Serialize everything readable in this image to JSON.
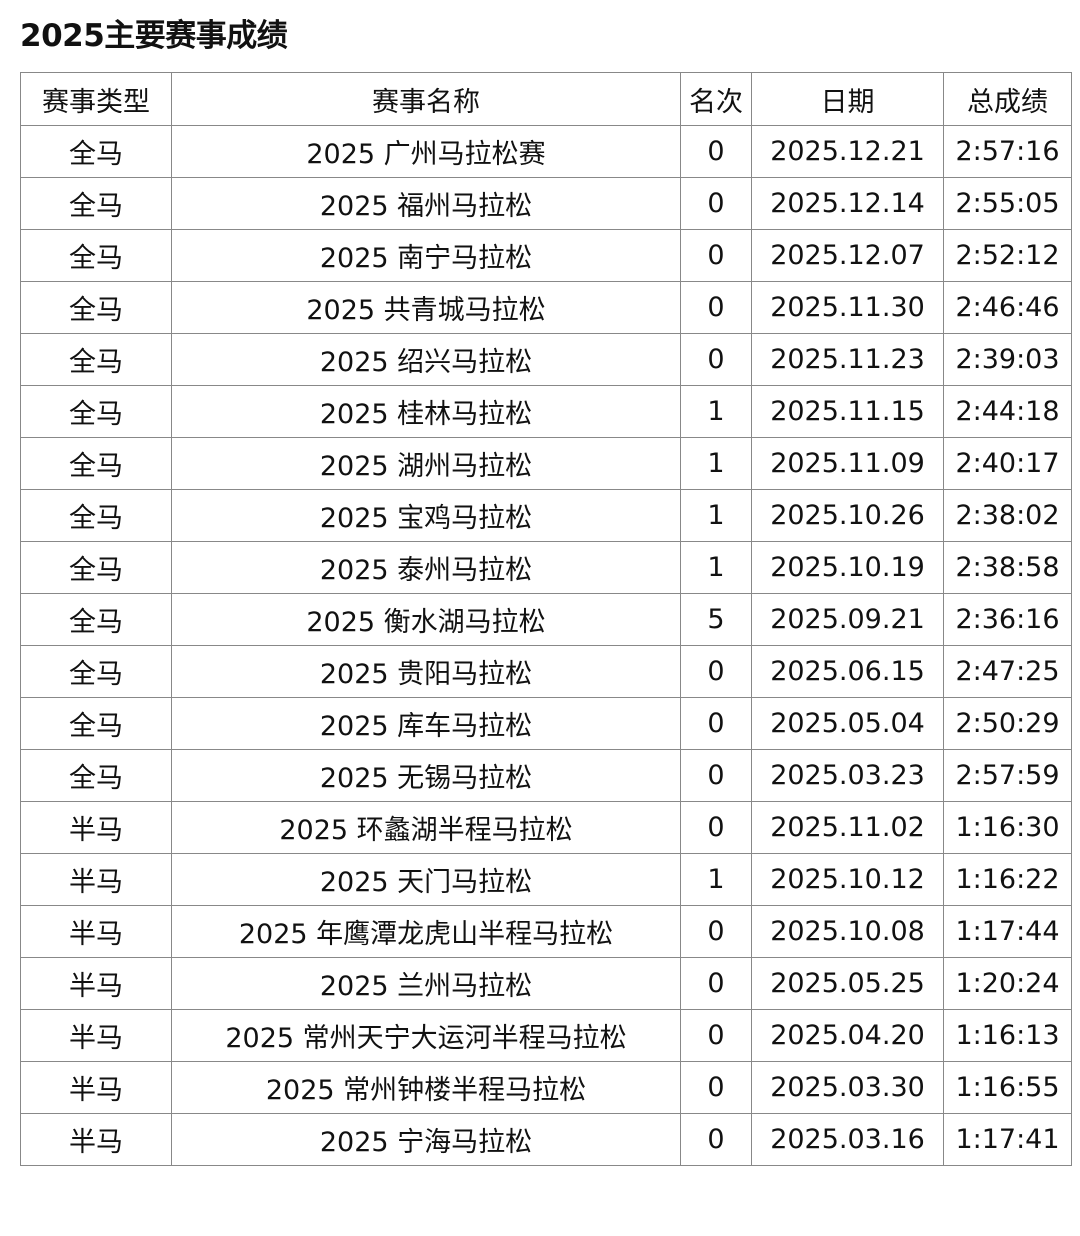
{
  "title": "2025主要赛事成绩",
  "columns": [
    "赛事类型",
    "赛事名称",
    "名次",
    "日期",
    "总成绩"
  ],
  "rows": [
    [
      "全马",
      "2025 广州马拉松赛",
      "0",
      "2025.12.21",
      "2:57:16"
    ],
    [
      "全马",
      "2025 福州马拉松",
      "0",
      "2025.12.14",
      "2:55:05"
    ],
    [
      "全马",
      "2025 南宁马拉松",
      "0",
      "2025.12.07",
      "2:52:12"
    ],
    [
      "全马",
      "2025 共青城马拉松",
      "0",
      "2025.11.30",
      "2:46:46"
    ],
    [
      "全马",
      "2025 绍兴马拉松",
      "0",
      "2025.11.23",
      "2:39:03"
    ],
    [
      "全马",
      "2025 桂林马拉松",
      "1",
      "2025.11.15",
      "2:44:18"
    ],
    [
      "全马",
      "2025 湖州马拉松",
      "1",
      "2025.11.09",
      "2:40:17"
    ],
    [
      "全马",
      "2025 宝鸡马拉松",
      "1",
      "2025.10.26",
      "2:38:02"
    ],
    [
      "全马",
      "2025 泰州马拉松",
      "1",
      "2025.10.19",
      "2:38:58"
    ],
    [
      "全马",
      "2025 衡水湖马拉松",
      "5",
      "2025.09.21",
      "2:36:16"
    ],
    [
      "全马",
      "2025 贵阳马拉松",
      "0",
      "2025.06.15",
      "2:47:25"
    ],
    [
      "全马",
      "2025 库车马拉松",
      "0",
      "2025.05.04",
      "2:50:29"
    ],
    [
      "全马",
      "2025 无锡马拉松",
      "0",
      "2025.03.23",
      "2:57:59"
    ],
    [
      "半马",
      "2025 环蠡湖半程马拉松",
      "0",
      "2025.11.02",
      "1:16:30"
    ],
    [
      "半马",
      "2025 天门马拉松",
      "1",
      "2025.10.12",
      "1:16:22"
    ],
    [
      "半马",
      "2025 年鹰潭龙虎山半程马拉松",
      "0",
      "2025.10.08",
      "1:17:44"
    ],
    [
      "半马",
      "2025 兰州马拉松",
      "0",
      "2025.05.25",
      "1:20:24"
    ],
    [
      "半马",
      "2025 常州天宁大运河半程马拉松",
      "0",
      "2025.04.20",
      "1:16:13"
    ],
    [
      "半马",
      "2025 常州钟楼半程马拉松",
      "0",
      "2025.03.30",
      "1:16:55"
    ],
    [
      "半马",
      "2025 宁海马拉松",
      "0",
      "2025.03.16",
      "1:17:41"
    ]
  ]
}
